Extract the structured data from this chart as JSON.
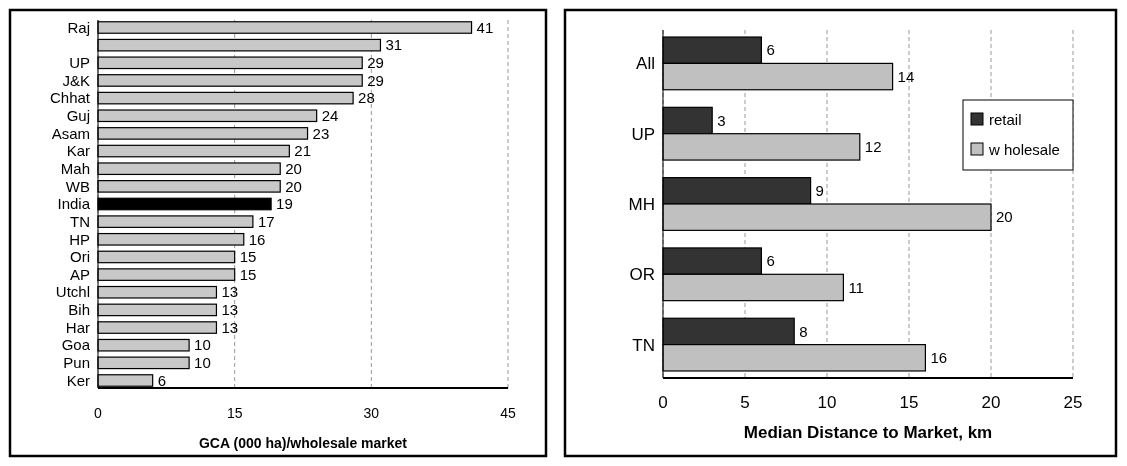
{
  "chart_data": [
    {
      "type": "bar",
      "orientation": "horizontal",
      "xlabel": "GCA (000 ha)/wholesale market",
      "categories": [
        "Raj",
        null,
        "UP",
        "J&K",
        "Chhat",
        "Guj",
        "Asam",
        "Kar",
        "Mah",
        "WB",
        "India",
        "TN",
        "HP",
        "Ori",
        "AP",
        "Utchl",
        "Bih",
        "Har",
        "Goa",
        "Pun",
        "Ker"
      ],
      "values": [
        41,
        31,
        29,
        29,
        28,
        24,
        23,
        21,
        20,
        20,
        19,
        17,
        16,
        15,
        15,
        13,
        13,
        13,
        10,
        10,
        6
      ],
      "colors": [
        "#c8c8c8",
        "#c8c8c8",
        "#c8c8c8",
        "#c8c8c8",
        "#c8c8c8",
        "#c8c8c8",
        "#c8c8c8",
        "#c8c8c8",
        "#c8c8c8",
        "#c8c8c8",
        "#000000",
        "#c8c8c8",
        "#c8c8c8",
        "#c8c8c8",
        "#c8c8c8",
        "#c8c8c8",
        "#c8c8c8",
        "#c8c8c8",
        "#c8c8c8",
        "#c8c8c8",
        "#c8c8c8"
      ],
      "xlim": [
        0,
        45
      ],
      "xticks": [
        0,
        15,
        30,
        45
      ],
      "grid": "x",
      "data_labels": true
    },
    {
      "type": "bar",
      "orientation": "horizontal",
      "xlabel": "Median Distance to Market, km",
      "categories": [
        "All",
        "UP",
        "MH",
        "OR",
        "TN"
      ],
      "series": [
        {
          "name": "retail",
          "color": "#333333",
          "values": [
            6,
            3,
            9,
            6,
            8
          ]
        },
        {
          "name": "w holesale",
          "color": "#c0c0c0",
          "values": [
            14,
            12,
            20,
            11,
            16
          ]
        }
      ],
      "xlim": [
        0,
        25
      ],
      "xticks": [
        0,
        5,
        10,
        15,
        20,
        25
      ],
      "grid": "x",
      "legend": "right",
      "data_labels": true
    }
  ]
}
